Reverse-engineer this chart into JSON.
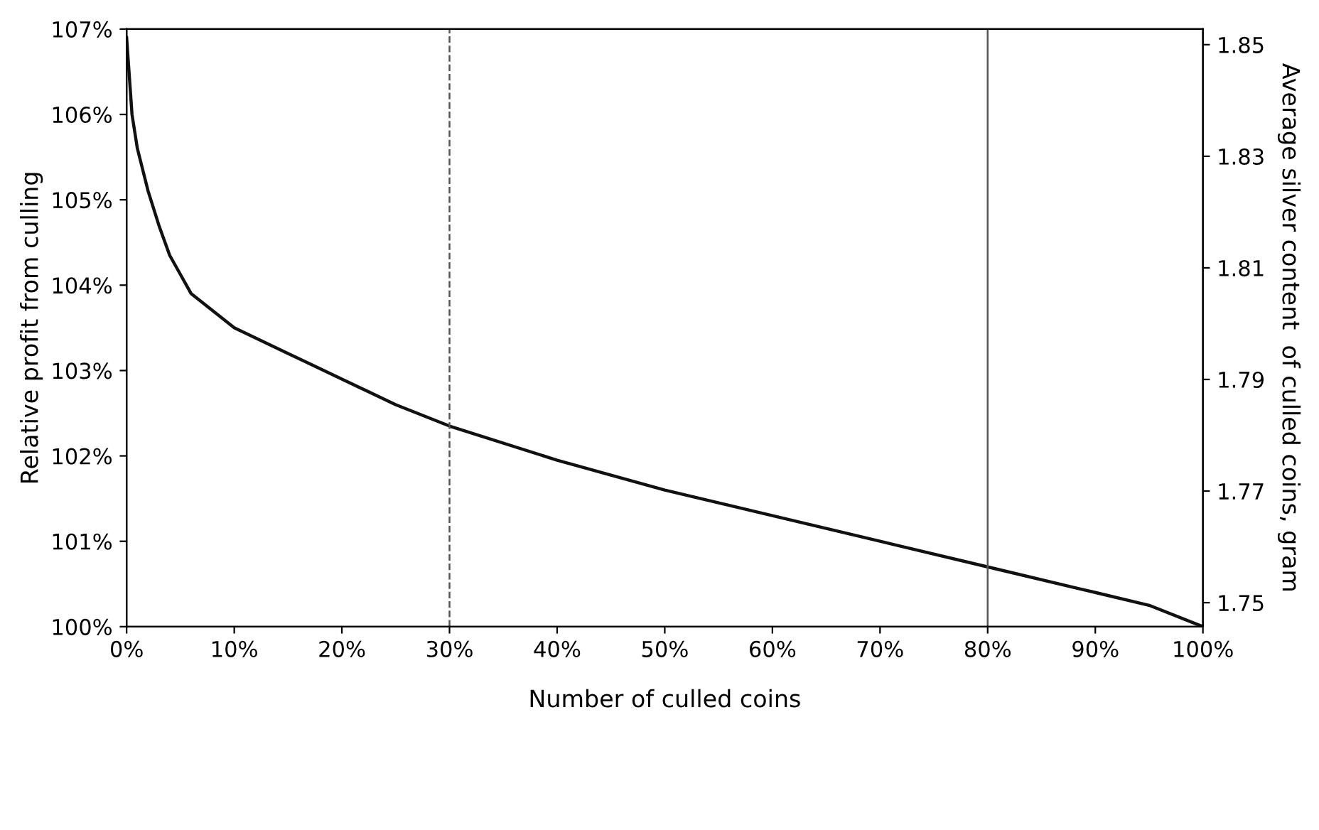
{
  "chart_data": {
    "type": "line",
    "xlabel": "Number of culled coins",
    "ylabel": "Relative profit from culling",
    "y2label": "Average silver content  of culled coins, gram",
    "x": [
      0,
      0.5,
      1,
      2,
      3,
      4,
      6,
      10,
      15,
      20,
      25,
      30,
      40,
      50,
      60,
      70,
      80,
      90,
      95,
      100
    ],
    "series": [
      {
        "color": "#111111",
        "values": [
          106.9,
          106.0,
          105.6,
          105.1,
          104.7,
          104.35,
          103.9,
          103.5,
          103.2,
          102.9,
          102.6,
          102.35,
          101.95,
          101.6,
          101.3,
          101.0,
          100.7,
          100.4,
          100.25,
          100.0
        ]
      }
    ],
    "xlim": [
      0,
      100
    ],
    "xticks": [
      {
        "value": 0,
        "label": "0%"
      },
      {
        "value": 10,
        "label": "10%"
      },
      {
        "value": 20,
        "label": "20%"
      },
      {
        "value": 30,
        "label": "30%"
      },
      {
        "value": 40,
        "label": "40%"
      },
      {
        "value": 50,
        "label": "50%"
      },
      {
        "value": 60,
        "label": "60%"
      },
      {
        "value": 70,
        "label": "70%"
      },
      {
        "value": 80,
        "label": "80%"
      },
      {
        "value": 90,
        "label": "90%"
      },
      {
        "value": 100,
        "label": "100%"
      }
    ],
    "ylim": [
      100,
      107
    ],
    "yticks": [
      {
        "value": 100,
        "label": "100%"
      },
      {
        "value": 101,
        "label": "101%"
      },
      {
        "value": 102,
        "label": "102%"
      },
      {
        "value": 103,
        "label": "103%"
      },
      {
        "value": 104,
        "label": "104%"
      },
      {
        "value": 105,
        "label": "105%"
      },
      {
        "value": 106,
        "label": "106%"
      },
      {
        "value": 107,
        "label": "107%"
      }
    ],
    "y2lim": [
      1.7457,
      1.8528
    ],
    "y2ticks": [
      1.75,
      1.77,
      1.79,
      1.81,
      1.83,
      1.85
    ],
    "ref_lines": [
      {
        "axis": "x",
        "value": 30,
        "color": "#555555",
        "line_style": "dashed"
      },
      {
        "axis": "x",
        "value": 80,
        "color": "#555555",
        "line_style": "solid"
      }
    ],
    "grid": false,
    "legend": false,
    "marker": "none",
    "line_style": "solid"
  }
}
